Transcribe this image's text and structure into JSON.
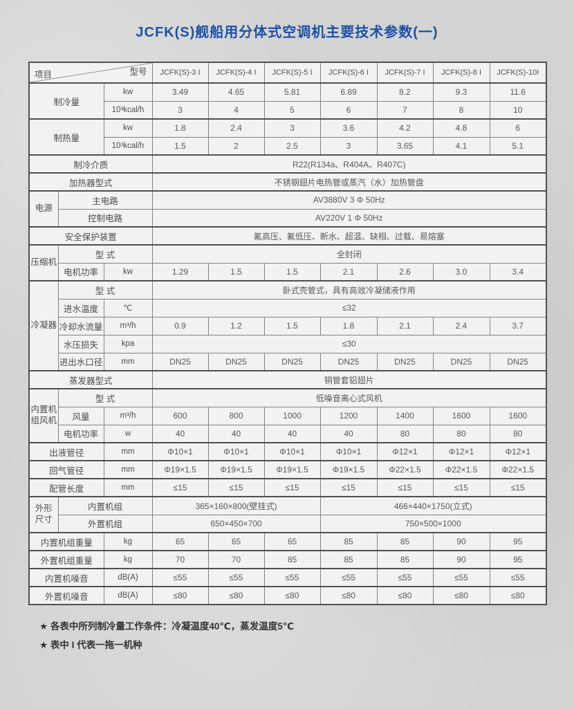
{
  "page": {
    "title": "JCFK(S)舰船用分体式空调机主要技术参数(一)"
  },
  "colors": {
    "title_blue": "#1d51a8",
    "table_bg": "#f2f2f0",
    "page_bg": "#d3d3d1",
    "border": "#4f4f4f",
    "text": "#4c4c4c"
  },
  "table": {
    "corner_top": "型号",
    "corner_bottom": "项目",
    "models": [
      "JCFK(S)-3 I",
      "JCFK(S)-4 I",
      "JCFK(S)-5 I",
      "JCFK(S)-6 I",
      "JCFK(S)-7 I",
      "JCFK(S)-8 I",
      "JCFK(S)-10I"
    ],
    "rows": [
      {
        "thick": true,
        "cells": [
          {
            "t": "制冷量",
            "cs": 2,
            "rs": 2,
            "k": "label"
          },
          {
            "t": "kw",
            "k": "unit"
          },
          {
            "t": "3.49"
          },
          {
            "t": "4.65"
          },
          {
            "t": "5.81"
          },
          {
            "t": "6.89"
          },
          {
            "t": "8.2"
          },
          {
            "t": "9.3"
          },
          {
            "t": "11.6"
          }
        ]
      },
      {
        "cells": [
          {
            "t": "10³kcal/h",
            "k": "unit"
          },
          {
            "t": "3"
          },
          {
            "t": "4"
          },
          {
            "t": "5"
          },
          {
            "t": "6"
          },
          {
            "t": "7"
          },
          {
            "t": "8"
          },
          {
            "t": "10"
          }
        ]
      },
      {
        "thick": true,
        "cells": [
          {
            "t": "制热量",
            "cs": 2,
            "rs": 2,
            "k": "label"
          },
          {
            "t": "kw",
            "k": "unit"
          },
          {
            "t": "1.8"
          },
          {
            "t": "2.4"
          },
          {
            "t": "3"
          },
          {
            "t": "3.6"
          },
          {
            "t": "4.2"
          },
          {
            "t": "4.8"
          },
          {
            "t": "6"
          }
        ]
      },
      {
        "cells": [
          {
            "t": "10³kcal/h",
            "k": "unit"
          },
          {
            "t": "1.5"
          },
          {
            "t": "2"
          },
          {
            "t": "2.5"
          },
          {
            "t": "3"
          },
          {
            "t": "3.65"
          },
          {
            "t": "4.1"
          },
          {
            "t": "5.1"
          }
        ]
      },
      {
        "thick": true,
        "cells": [
          {
            "t": "制冷介质",
            "cs": 3,
            "k": "label"
          },
          {
            "t": "R22(R134a、R404A、R407C)",
            "cs": 7
          }
        ]
      },
      {
        "thick": true,
        "cells": [
          {
            "t": "加热器型式",
            "cs": 3,
            "k": "label"
          },
          {
            "t": "不锈钢翅片电热管或蒸汽（水）加热管盘",
            "cs": 7
          }
        ]
      },
      {
        "thick": true,
        "cells": [
          {
            "t": "电源",
            "rs": 2,
            "k": "group"
          },
          {
            "t": "主电路",
            "cs": 2,
            "k": "label"
          },
          {
            "t": "AV3880V 3 Φ 50Hz",
            "cs": 7
          }
        ]
      },
      {
        "cells": [
          {
            "t": "控制电路",
            "cs": 2,
            "k": "label"
          },
          {
            "t": "AV220V 1 Φ 50Hz",
            "cs": 7
          }
        ]
      },
      {
        "thick": true,
        "cells": [
          {
            "t": "安全保护装置",
            "cs": 3,
            "k": "label"
          },
          {
            "t": "氟高压、氟低压、断水、超温、缺相、过载、易熔塞",
            "cs": 7
          }
        ]
      },
      {
        "thick": true,
        "cells": [
          {
            "t": "压缩机",
            "rs": 2,
            "k": "group"
          },
          {
            "t": "型 式",
            "cs": 2,
            "k": "label"
          },
          {
            "t": "全封闭",
            "cs": 7
          }
        ]
      },
      {
        "cells": [
          {
            "t": "电机功率",
            "k": "label"
          },
          {
            "t": "kw",
            "k": "unit"
          },
          {
            "t": "1.29"
          },
          {
            "t": "1.5"
          },
          {
            "t": "1.5"
          },
          {
            "t": "2.1"
          },
          {
            "t": "2.6"
          },
          {
            "t": "3.0"
          },
          {
            "t": "3.4"
          }
        ]
      },
      {
        "thick": true,
        "cells": [
          {
            "t": "冷凝器",
            "rs": 5,
            "k": "group"
          },
          {
            "t": "型 式",
            "cs": 2,
            "k": "label"
          },
          {
            "t": "卧式壳管式，具有高效冷凝储液作用",
            "cs": 7
          }
        ]
      },
      {
        "cells": [
          {
            "t": "进水温度",
            "k": "label"
          },
          {
            "t": "℃",
            "k": "unit"
          },
          {
            "t": "≤32",
            "cs": 7
          }
        ]
      },
      {
        "cells": [
          {
            "t": "冷却水流量",
            "k": "label"
          },
          {
            "t": "m³/h",
            "k": "unit"
          },
          {
            "t": "0.9"
          },
          {
            "t": "1.2"
          },
          {
            "t": "1.5"
          },
          {
            "t": "1.8"
          },
          {
            "t": "2.1"
          },
          {
            "t": "2.4"
          },
          {
            "t": "3.7"
          }
        ]
      },
      {
        "cells": [
          {
            "t": "水压损失",
            "k": "label"
          },
          {
            "t": "kpa",
            "k": "unit"
          },
          {
            "t": "≤30",
            "cs": 7
          }
        ]
      },
      {
        "cells": [
          {
            "t": "进出水口径",
            "k": "label"
          },
          {
            "t": "mm",
            "k": "unit"
          },
          {
            "t": "DN25"
          },
          {
            "t": "DN25"
          },
          {
            "t": "DN25"
          },
          {
            "t": "DN25"
          },
          {
            "t": "DN25"
          },
          {
            "t": "DN25"
          },
          {
            "t": "DN25"
          }
        ]
      },
      {
        "thick": true,
        "cells": [
          {
            "t": "蒸发器型式",
            "cs": 3,
            "k": "label"
          },
          {
            "t": "铜管套铝翅片",
            "cs": 7
          }
        ]
      },
      {
        "thick": true,
        "cells": [
          {
            "t": "内置机\n组风机",
            "rs": 3,
            "k": "group"
          },
          {
            "t": "型 式",
            "cs": 2,
            "k": "label"
          },
          {
            "t": "低噪音离心式风机",
            "cs": 7
          }
        ]
      },
      {
        "cells": [
          {
            "t": "风量",
            "k": "label"
          },
          {
            "t": "m³/h",
            "k": "unit"
          },
          {
            "t": "600"
          },
          {
            "t": "800"
          },
          {
            "t": "1000"
          },
          {
            "t": "1200"
          },
          {
            "t": "1400"
          },
          {
            "t": "1600"
          },
          {
            "t": "1600"
          }
        ]
      },
      {
        "cells": [
          {
            "t": "电机功率",
            "k": "label"
          },
          {
            "t": "w",
            "k": "unit"
          },
          {
            "t": "40"
          },
          {
            "t": "40"
          },
          {
            "t": "40"
          },
          {
            "t": "40"
          },
          {
            "t": "80"
          },
          {
            "t": "80"
          },
          {
            "t": "80"
          }
        ]
      },
      {
        "thick": true,
        "cells": [
          {
            "t": "出液管径",
            "cs": 2,
            "k": "label"
          },
          {
            "t": "mm",
            "k": "unit"
          },
          {
            "t": "Φ10×1"
          },
          {
            "t": "Φ10×1"
          },
          {
            "t": "Φ10×1"
          },
          {
            "t": "Φ10×1"
          },
          {
            "t": "Φ12×1"
          },
          {
            "t": "Φ12×1"
          },
          {
            "t": "Φ12×1"
          }
        ]
      },
      {
        "thick": true,
        "cells": [
          {
            "t": "回气管径",
            "cs": 2,
            "k": "label"
          },
          {
            "t": "mm",
            "k": "unit"
          },
          {
            "t": "Φ19×1.5"
          },
          {
            "t": "Φ19×1.5"
          },
          {
            "t": "Φ19×1.5"
          },
          {
            "t": "Φ19×1.5"
          },
          {
            "t": "Φ22×1.5"
          },
          {
            "t": "Φ22×1.5"
          },
          {
            "t": "Φ22×1.5"
          }
        ]
      },
      {
        "thick": true,
        "cells": [
          {
            "t": "配管长度",
            "cs": 2,
            "k": "label"
          },
          {
            "t": "mm",
            "k": "unit"
          },
          {
            "t": "≤15"
          },
          {
            "t": "≤15"
          },
          {
            "t": "≤15"
          },
          {
            "t": "≤15"
          },
          {
            "t": "≤15"
          },
          {
            "t": "≤15"
          },
          {
            "t": "≤15"
          }
        ]
      },
      {
        "thick": true,
        "cells": [
          {
            "t": "外形\n尺寸",
            "rs": 2,
            "k": "group"
          },
          {
            "t": "内置机组",
            "cs": 2,
            "k": "label"
          },
          {
            "t": "365×160×800(壁挂式)",
            "cs": 3
          },
          {
            "t": "466×440×1750(立式)",
            "cs": 4
          }
        ]
      },
      {
        "cells": [
          {
            "t": "外置机组",
            "cs": 2,
            "k": "label"
          },
          {
            "t": "650×450×700",
            "cs": 3
          },
          {
            "t": "750×500×1000",
            "cs": 4
          }
        ]
      },
      {
        "thick": true,
        "cells": [
          {
            "t": "内置机组重量",
            "cs": 2,
            "k": "label"
          },
          {
            "t": "kg",
            "k": "unit"
          },
          {
            "t": "65"
          },
          {
            "t": "65"
          },
          {
            "t": "65"
          },
          {
            "t": "85"
          },
          {
            "t": "85"
          },
          {
            "t": "90"
          },
          {
            "t": "95"
          }
        ]
      },
      {
        "thick": true,
        "cells": [
          {
            "t": "外置机组重量",
            "cs": 2,
            "k": "label"
          },
          {
            "t": "kg",
            "k": "unit"
          },
          {
            "t": "70"
          },
          {
            "t": "70"
          },
          {
            "t": "85"
          },
          {
            "t": "85"
          },
          {
            "t": "85"
          },
          {
            "t": "90"
          },
          {
            "t": "95"
          }
        ]
      },
      {
        "thick": true,
        "cells": [
          {
            "t": "内置机噪音",
            "cs": 2,
            "k": "label"
          },
          {
            "t": "dB(A)",
            "k": "unit"
          },
          {
            "t": "≤55"
          },
          {
            "t": "≤55"
          },
          {
            "t": "≤55"
          },
          {
            "t": "≤55"
          },
          {
            "t": "≤55"
          },
          {
            "t": "≤55"
          },
          {
            "t": "≤55"
          }
        ]
      },
      {
        "thick": true,
        "cells": [
          {
            "t": "外置机噪音",
            "cs": 2,
            "k": "label"
          },
          {
            "t": "dB(A)",
            "k": "unit"
          },
          {
            "t": "≤80"
          },
          {
            "t": "≤80"
          },
          {
            "t": "≤80"
          },
          {
            "t": "≤80"
          },
          {
            "t": "≤80"
          },
          {
            "t": "≤80"
          },
          {
            "t": "≤80"
          }
        ]
      }
    ]
  },
  "footnotes": [
    "★ 各表中所列制冷量工作条件：冷凝温度40℃，蒸发温度5℃",
    "★ 表中 I 代表一拖一机种"
  ]
}
